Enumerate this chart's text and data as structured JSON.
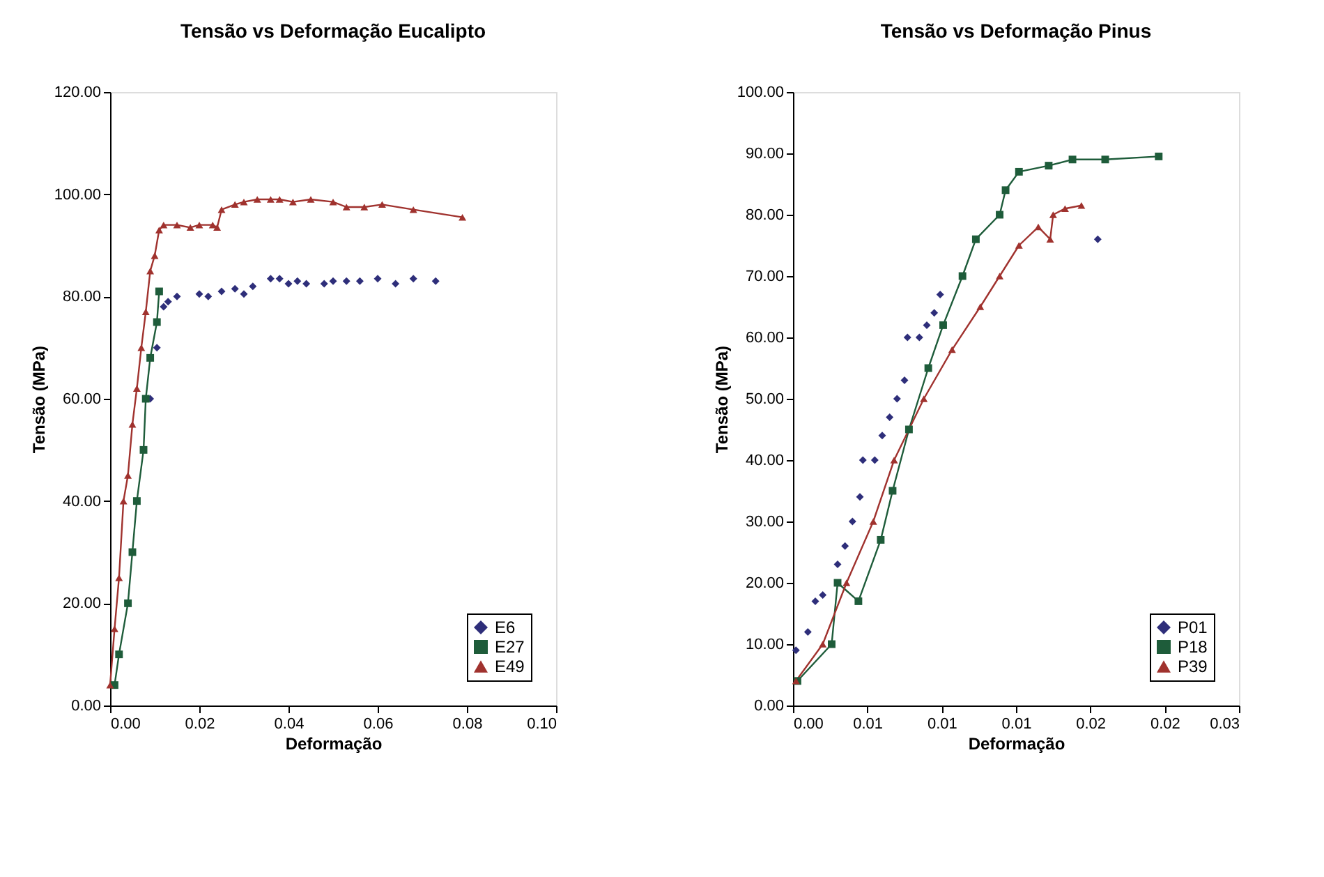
{
  "chart_data": [
    {
      "type": "scatter",
      "title": "Tensão vs Deformação Eucalipto",
      "xlabel": "Deformação",
      "ylabel": "Tensão (MPa)",
      "legend": "bottom right",
      "grid": false,
      "xlim": [
        0,
        0.1
      ],
      "xticks": [
        {
          "value": 0,
          "label": "0.00"
        },
        0.02,
        0.04,
        0.06,
        0.08,
        {
          "value": 0.1,
          "label": "0.10"
        }
      ],
      "ylim": [
        0,
        120
      ],
      "yticks": [
        {
          "value": 0,
          "label": "0.00"
        },
        {
          "value": 20,
          "label": "20.00"
        },
        {
          "value": 40,
          "label": "40.00"
        },
        {
          "value": 60,
          "label": "60.00"
        },
        {
          "value": 80,
          "label": "80.00"
        },
        {
          "value": 100,
          "label": "100.00"
        },
        {
          "value": 120,
          "label": "120.00"
        }
      ],
      "series": [
        {
          "name": "E6",
          "type": "scatter",
          "marker": "diamond",
          "color": "#2e2e7a",
          "x": [
            0.009,
            0.0105,
            0.012,
            0.013,
            0.015,
            0.02,
            0.022,
            0.025,
            0.028,
            0.03,
            0.032,
            0.036,
            0.038,
            0.04,
            0.042,
            0.044,
            0.048,
            0.05,
            0.053,
            0.056,
            0.06,
            0.064,
            0.068,
            0.073
          ],
          "values": [
            60,
            70,
            78,
            79,
            80,
            80.5,
            80,
            81,
            81.5,
            80.5,
            82,
            83.5,
            83.5,
            82.5,
            83,
            82.5,
            82.5,
            83,
            83,
            83,
            83.5,
            82.5,
            83.5,
            83
          ]
        },
        {
          "name": "E27",
          "type": "line",
          "marker": "square",
          "color": "#1e5c3a",
          "x": [
            0.001,
            0.002,
            0.004,
            0.005,
            0.006,
            0.0075,
            0.008,
            0.009,
            0.0105,
            0.011
          ],
          "values": [
            4,
            10,
            20,
            30,
            40,
            50,
            60,
            68,
            75,
            81
          ]
        },
        {
          "name": "E49",
          "type": "line",
          "marker": "triangle",
          "color": "#a0322e",
          "x": [
            0.0,
            0.001,
            0.002,
            0.003,
            0.004,
            0.005,
            0.006,
            0.007,
            0.008,
            0.009,
            0.01,
            0.011,
            0.012,
            0.015,
            0.018,
            0.02,
            0.023,
            0.024,
            0.025,
            0.028,
            0.03,
            0.033,
            0.036,
            0.038,
            0.041,
            0.045,
            0.05,
            0.053,
            0.057,
            0.061,
            0.068,
            0.079
          ],
          "values": [
            4,
            15,
            25,
            40,
            45,
            55,
            62,
            70,
            77,
            85,
            88,
            93,
            94,
            94,
            93.5,
            94,
            94,
            93.5,
            97,
            98,
            98.5,
            99,
            99,
            99,
            98.5,
            99,
            98.5,
            97.5,
            97.5,
            98,
            97,
            95.5
          ]
        }
      ]
    },
    {
      "type": "scatter",
      "title": "Tensão vs Deformação Pinus",
      "xlabel": "Deformação",
      "ylabel": "Tensão (MPa)",
      "legend": "bottom right",
      "grid": false,
      "xlim": [
        0,
        0.03
      ],
      "xticks": [
        {
          "value": 0,
          "label": "0.00"
        },
        {
          "value": 0.005,
          "label": "0.01"
        },
        {
          "value": 0.01,
          "label": "0.01"
        },
        {
          "value": 0.015,
          "label": "0.01"
        },
        {
          "value": 0.02,
          "label": "0.02"
        },
        {
          "value": 0.025,
          "label": "0.02"
        },
        {
          "value": 0.03,
          "label": "0.03"
        }
      ],
      "ylim": [
        0,
        100
      ],
      "yticks": [
        {
          "value": 0,
          "label": "0.00"
        },
        {
          "value": 10,
          "label": "10.00"
        },
        {
          "value": 20,
          "label": "20.00"
        },
        {
          "value": 30,
          "label": "30.00"
        },
        {
          "value": 40,
          "label": "40.00"
        },
        {
          "value": 50,
          "label": "50.00"
        },
        {
          "value": 60,
          "label": "60.00"
        },
        {
          "value": 70,
          "label": "70.00"
        },
        {
          "value": 80,
          "label": "80.00"
        },
        {
          "value": 90,
          "label": "90.00"
        },
        {
          "value": 100,
          "label": "100.00"
        }
      ],
      "series": [
        {
          "name": "P01",
          "type": "scatter",
          "marker": "diamond",
          "color": "#2e2e7a",
          "x": [
            0.0002,
            0.001,
            0.0015,
            0.002,
            0.003,
            0.0035,
            0.004,
            0.0045,
            0.0047,
            0.0055,
            0.006,
            0.0065,
            0.007,
            0.0075,
            0.0077,
            0.0085,
            0.009,
            0.0095,
            0.0099,
            0.0205
          ],
          "values": [
            9,
            12,
            17,
            18,
            23,
            26,
            30,
            34,
            40,
            40,
            44,
            47,
            50,
            53,
            60,
            60,
            62,
            64,
            67,
            76
          ]
        },
        {
          "name": "P18",
          "type": "line",
          "marker": "square",
          "color": "#1e5c3a",
          "x": [
            0.0003,
            0.0026,
            0.003,
            0.0044,
            0.0059,
            0.0067,
            0.0078,
            0.0091,
            0.0101,
            0.0114,
            0.0123,
            0.0139,
            0.0143,
            0.0152,
            0.0172,
            0.0188,
            0.021,
            0.0246
          ],
          "values": [
            4,
            10,
            20,
            17,
            27,
            35,
            45,
            55,
            62,
            70,
            76,
            80,
            84,
            87,
            88,
            89,
            89,
            89.5
          ]
        },
        {
          "name": "P39",
          "type": "line",
          "marker": "triangle",
          "color": "#a0322e",
          "x": [
            0.0002,
            0.002,
            0.0036,
            0.0054,
            0.0068,
            0.0088,
            0.0107,
            0.0126,
            0.0139,
            0.0152,
            0.0165,
            0.0173,
            0.0175,
            0.0183,
            0.0194
          ],
          "values": [
            4,
            10,
            20,
            30,
            40,
            50,
            58,
            65,
            70,
            75,
            78,
            76,
            80,
            81,
            81.5
          ]
        }
      ]
    }
  ]
}
